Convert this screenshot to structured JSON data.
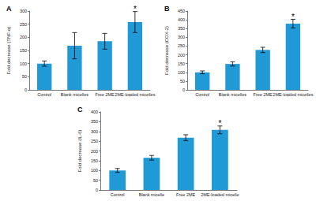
{
  "chart_data": [
    {
      "type": "bar",
      "title": "A",
      "y_label": "Fold decrease (TNF-α)",
      "categories": [
        "Control",
        "Blank micelles",
        "Free 2ME",
        "2ME-loaded micelles"
      ],
      "values": [
        100,
        168,
        185,
        258
      ],
      "errors": [
        10,
        50,
        30,
        40
      ],
      "color": "#1f9ad6",
      "ylim": [
        0,
        300
      ],
      "yticks": [
        0,
        50,
        100,
        150,
        200,
        250,
        300
      ],
      "grid": false,
      "annotations": [
        {
          "category": "2ME-loaded micelles",
          "text": "*"
        }
      ]
    },
    {
      "type": "bar",
      "title": "B",
      "y_label": "Fold decrease (COX-2)",
      "categories": [
        "Control",
        "Blank micelles",
        "Free 2ME",
        "2ME-loaded micelles"
      ],
      "values": [
        100,
        148,
        228,
        378
      ],
      "errors": [
        8,
        12,
        15,
        25
      ],
      "color": "#1f9ad6",
      "ylim": [
        0,
        450
      ],
      "yticks": [
        0,
        50,
        100,
        150,
        200,
        250,
        300,
        350,
        400,
        450
      ],
      "grid": false,
      "annotations": [
        {
          "category": "2ME-loaded micelles",
          "text": "*"
        }
      ]
    },
    {
      "type": "bar",
      "title": "C",
      "y_label": "Fold decrease (IL-6)",
      "categories": [
        "Control",
        "Blank micelle",
        "Free 2ME",
        "2ME-loaded micelle"
      ],
      "values": [
        100,
        165,
        268,
        308
      ],
      "errors": [
        10,
        12,
        15,
        20
      ],
      "color": "#1f9ad6",
      "ylim": [
        0,
        400
      ],
      "yticks": [
        0,
        50,
        100,
        150,
        200,
        250,
        300,
        350,
        400
      ],
      "grid": false,
      "annotations": [
        {
          "category": "2ME-loaded micelle",
          "text": "*"
        }
      ]
    }
  ]
}
